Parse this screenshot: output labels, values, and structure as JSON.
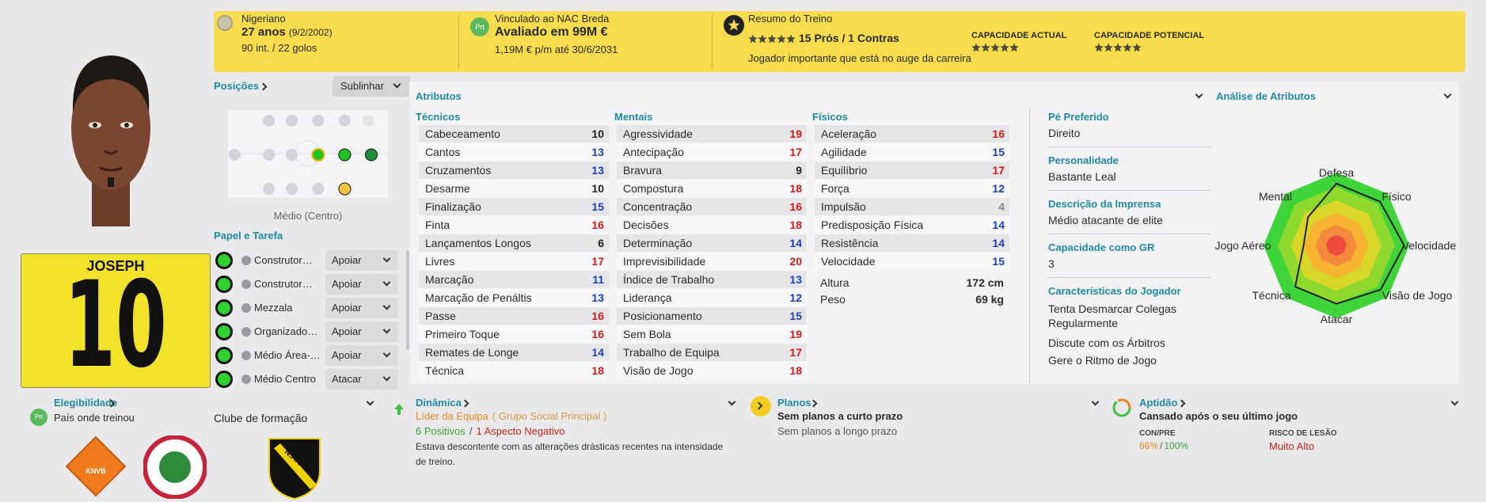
{
  "header": {
    "nationality": "Nigeriano",
    "age": "27 anos",
    "dob": "(9/2/2002)",
    "caps": "90 int. / 22 golos",
    "club_badge": "Prt",
    "club": "Vinculado ao NAC Breda",
    "value": "Avaliado em 99M €",
    "wage": "1,19M € p/m até 30/6/2031",
    "training_title": "Resumo do Treino",
    "pros_cons": "15 Prós / 1 Contras",
    "training_note": "Jogador importante que está no auge da carreira",
    "current_ability": "CAPACIDADE ACTUAL",
    "potential_ability": "CAPACIDADE POTENCIAL"
  },
  "shirt": {
    "name": "JOSEPH",
    "number": "10"
  },
  "positions": {
    "title": "Posições",
    "button": "Sublinhar",
    "label": "Médio (Centro)"
  },
  "roles": {
    "title": "Papel e Tarefa",
    "items": [
      {
        "role": "Construtor…",
        "duty": "Apoiar"
      },
      {
        "role": "Construtor…",
        "duty": "Apoiar"
      },
      {
        "role": "Mezzala",
        "duty": "Apoiar"
      },
      {
        "role": "Organizado…",
        "duty": "Apoiar"
      },
      {
        "role": "Médio Área-…",
        "duty": "Apoiar"
      },
      {
        "role": "Médio Centro",
        "duty": "Atacar"
      }
    ]
  },
  "attributes": {
    "title": "Atributos",
    "groups": [
      {
        "title": "Técnicos",
        "items": [
          {
            "name": "Cabeceamento",
            "value": 10
          },
          {
            "name": "Cantos",
            "value": 13
          },
          {
            "name": "Cruzamentos",
            "value": 13
          },
          {
            "name": "Desarme",
            "value": 10
          },
          {
            "name": "Finalização",
            "value": 15
          },
          {
            "name": "Finta",
            "value": 16
          },
          {
            "name": "Lançamentos Longos",
            "value": 6
          },
          {
            "name": "Livres",
            "value": 17
          },
          {
            "name": "Marcação",
            "value": 11
          },
          {
            "name": "Marcação de Penáltis",
            "value": 13
          },
          {
            "name": "Passe",
            "value": 16
          },
          {
            "name": "Primeiro Toque",
            "value": 16
          },
          {
            "name": "Remates de Longe",
            "value": 14
          },
          {
            "name": "Técnica",
            "value": 18
          }
        ]
      },
      {
        "title": "Mentais",
        "items": [
          {
            "name": "Agressividade",
            "value": 19
          },
          {
            "name": "Antecipação",
            "value": 17
          },
          {
            "name": "Bravura",
            "value": 9
          },
          {
            "name": "Compostura",
            "value": 18
          },
          {
            "name": "Concentração",
            "value": 16
          },
          {
            "name": "Decisões",
            "value": 18
          },
          {
            "name": "Determinação",
            "value": 14
          },
          {
            "name": "Imprevisibilidade",
            "value": 20
          },
          {
            "name": "Índice de Trabalho",
            "value": 13
          },
          {
            "name": "Liderança",
            "value": 12
          },
          {
            "name": "Posicionamento",
            "value": 15
          },
          {
            "name": "Sem Bola",
            "value": 19
          },
          {
            "name": "Trabalho de Equipa",
            "value": 17
          },
          {
            "name": "Visão de Jogo",
            "value": 18
          }
        ]
      },
      {
        "title": "Físicos",
        "items": [
          {
            "name": "Aceleração",
            "value": 16
          },
          {
            "name": "Agilidade",
            "value": 15
          },
          {
            "name": "Equilíbrio",
            "value": 17
          },
          {
            "name": "Força",
            "value": 12
          },
          {
            "name": "Impulsão",
            "value": 4
          },
          {
            "name": "Predisposição Física",
            "value": 14
          },
          {
            "name": "Resistência",
            "value": 14
          },
          {
            "name": "Velocidade",
            "value": 15
          }
        ]
      }
    ],
    "height_label": "Altura",
    "height": "172 cm",
    "weight_label": "Peso",
    "weight": "69 kg"
  },
  "profile": {
    "items": [
      {
        "label": "Pé Preferido",
        "value": "Direito"
      },
      {
        "label": "Personalidade",
        "value": "Bastante Leal"
      },
      {
        "label": "Descrição da Imprensa",
        "value": "Médio atacante de elite"
      },
      {
        "label": "Capacidade como GR",
        "value": "3"
      }
    ],
    "traits_title": "Características do Jogador",
    "traits": [
      "Tenta Desmarcar Colegas Regularmente",
      "Discute com os Árbitros",
      "Gere o Ritmo de Jogo"
    ]
  },
  "analysis": {
    "title": "Análise de Atributos",
    "labels": [
      "Defesa",
      "Físico",
      "Velocidade",
      "Visão de Jogo",
      "Atacar",
      "Técnica",
      "Jogo Aéreo",
      "Mental"
    ]
  },
  "eligibility": {
    "title": "Elegibilidade",
    "badge": "Prt",
    "text": "País onde treinou",
    "youth_club": "Clube de formação",
    "knvb": "KNVB",
    "nac": "N.A.C."
  },
  "dynamics": {
    "title": "Dinâmica",
    "role": "Líder da Equipa",
    "group": "( Grupo Social Principal )",
    "positives": "6 Positivos",
    "separator": "/",
    "negatives": "1 Aspecto Negativo",
    "note": "Estava descontente com as alterações drásticas recentes na intensidade de treino."
  },
  "plans": {
    "title": "Planos",
    "short": "Sem planos a curto prazo",
    "long": "Sem planos a longo prazo"
  },
  "fitness": {
    "title": "Aptidão",
    "status": "Cansado após o seu último jogo",
    "con_label": "CON/PRE",
    "condition": "66%",
    "separator": "/",
    "sharpness": "100%",
    "risk_label": "RISCO DE LESÃO",
    "risk": "Muito Alto"
  }
}
